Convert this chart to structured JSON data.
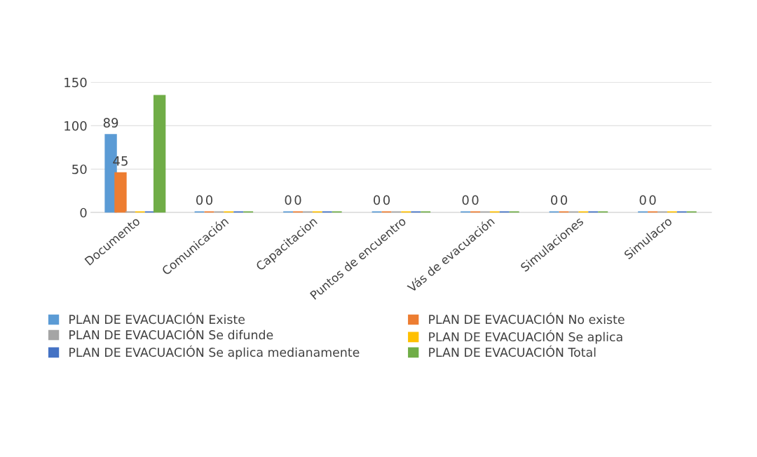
{
  "chart_data": {
    "type": "bar",
    "categories": [
      "Documento",
      "Comunicación",
      "Capacitacion",
      "Puntos de encuentro",
      "Vás de evacuación",
      "Simulaciones",
      "Simulacro"
    ],
    "series": [
      {
        "name": "PLAN DE EVACUACIÓN Existe",
        "color": "#5b9bd5",
        "values": [
          89,
          0,
          0,
          0,
          0,
          0,
          0
        ],
        "value_labels": [
          "89",
          "0",
          "0",
          "0",
          "0",
          "0",
          "0"
        ]
      },
      {
        "name": "PLAN DE EVACUACIÓN No existe",
        "color": "#ed7d31",
        "values": [
          45,
          0,
          0,
          0,
          0,
          0,
          0
        ],
        "value_labels": [
          "45",
          "0",
          "0",
          "0",
          "0",
          "0",
          "0"
        ]
      },
      {
        "name": "PLAN DE EVACUACIÓN Se difunde",
        "color": "#a5a5a5",
        "values": [
          0,
          0,
          0,
          0,
          0,
          0,
          0
        ]
      },
      {
        "name": "PLAN DE EVACUACIÓN Se aplica",
        "color": "#ffc000",
        "values": [
          0,
          0,
          0,
          0,
          0,
          0,
          0
        ]
      },
      {
        "name": "PLAN DE EVACUACIÓN Se aplica medianamente",
        "color": "#4472c4",
        "values": [
          0,
          0,
          0,
          0,
          0,
          0,
          0
        ]
      },
      {
        "name": "PLAN DE EVACUACIÓN Total",
        "color": "#70ad47",
        "values": [
          134,
          0,
          0,
          0,
          0,
          0,
          0
        ]
      }
    ],
    "ylim": [
      0,
      150
    ],
    "yticks": [
      0,
      50,
      100,
      150
    ],
    "grid": "y",
    "legend": "bottom"
  }
}
